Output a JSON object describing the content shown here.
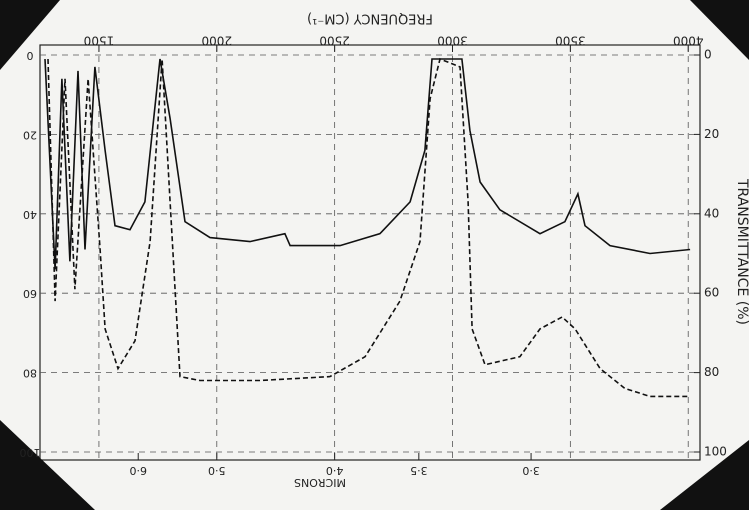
{
  "chart_data": {
    "type": "line",
    "title": "FREQUENCY (CM⁻¹)",
    "y_label": "TRANSMITTANCE (%)",
    "x2_label": "MICRONS",
    "xlim": [
      1250,
      4050
    ],
    "xticks": [
      1500,
      2000,
      2500,
      3000,
      3500,
      4000
    ],
    "ylim": [
      0,
      100
    ],
    "yticks": [
      0,
      20,
      40,
      60,
      80,
      100
    ],
    "x2ticks": [
      {
        "value": 6,
        "label": "6·0"
      },
      {
        "value": 5,
        "label": "5·0"
      },
      {
        "value": 4,
        "label": "4·0"
      },
      {
        "value": 3.5,
        "label": "3·5"
      },
      {
        "value": 3,
        "label": "3·0"
      }
    ],
    "grid": true,
    "series": [
      {
        "color": "#111",
        "dash": false,
        "x": [
          1271,
          1314,
          1343,
          1377,
          1411,
          1441,
          1483,
          1526,
          1568,
          1632,
          1695,
          1759,
          1802,
          1865,
          1971,
          2141,
          2289,
          2311,
          2523,
          2692,
          2820,
          2883,
          2913,
          2989,
          3040,
          3074,
          3117,
          3201,
          3371,
          3477,
          3532,
          3562,
          3668,
          3838,
          4008
        ],
        "values": [
          1,
          54,
          6,
          52,
          4,
          49,
          3,
          24,
          43,
          44,
          37,
          1,
          16,
          42,
          46,
          47,
          45,
          48,
          48,
          45,
          37,
          24,
          1,
          1,
          1,
          19,
          32,
          39,
          45,
          42,
          35,
          43,
          48,
          50,
          49
        ]
      },
      {
        "color": "#111",
        "dash": true,
        "x": [
          1284,
          1314,
          1356,
          1398,
          1454,
          1505,
          1526,
          1581,
          1653,
          1717,
          1768,
          1802,
          1844,
          1929,
          2183,
          2480,
          2629,
          2777,
          2862,
          2905,
          2947,
          3032,
          3066,
          3083,
          3138,
          3286,
          3371,
          3465,
          3520,
          3626,
          3732,
          3838,
          4008
        ],
        "values": [
          1,
          62,
          6,
          59,
          6,
          49,
          69,
          79,
          72,
          47,
          1,
          37,
          81,
          82,
          82,
          81,
          76,
          62,
          47,
          11,
          1,
          3,
          37,
          69,
          78,
          76,
          69,
          66,
          69,
          79,
          84,
          86,
          86
        ]
      }
    ]
  }
}
